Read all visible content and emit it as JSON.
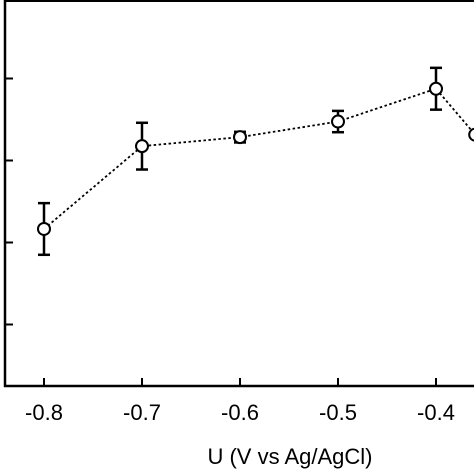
{
  "chart_data": {
    "type": "line",
    "title": "",
    "xlabel": "U (V vs  Ag/AgCl)",
    "ylabel": "",
    "xlim": [
      -0.86,
      -0.35
    ],
    "ylim": [
      0,
      1
    ],
    "x_ticks": [
      -0.8,
      -0.7,
      -0.6,
      -0.5,
      -0.4
    ],
    "x_tick_labels": [
      "-0.8",
      "-0.7",
      "-0.6",
      "-0.5",
      "-0.4"
    ],
    "y_ticks": [
      0.15,
      0.35,
      0.55,
      0.75
    ],
    "y_tick_labels": [
      "",
      "",
      "",
      ""
    ],
    "grid": false,
    "legend": "none",
    "marker": "open-circle",
    "line_style": "dotted",
    "colors": {
      "line": "#000000",
      "marker": "#000000",
      "axis": "#000000"
    },
    "series": [
      {
        "x": [
          -0.8,
          -0.7,
          -0.6,
          -0.5,
          -0.4,
          -0.36
        ],
        "y": [
          0.383,
          0.585,
          0.607,
          0.645,
          0.725,
          0.613
        ],
        "err": [
          0.063,
          0.057,
          0.013,
          0.026,
          0.051,
          0
        ]
      }
    ]
  }
}
